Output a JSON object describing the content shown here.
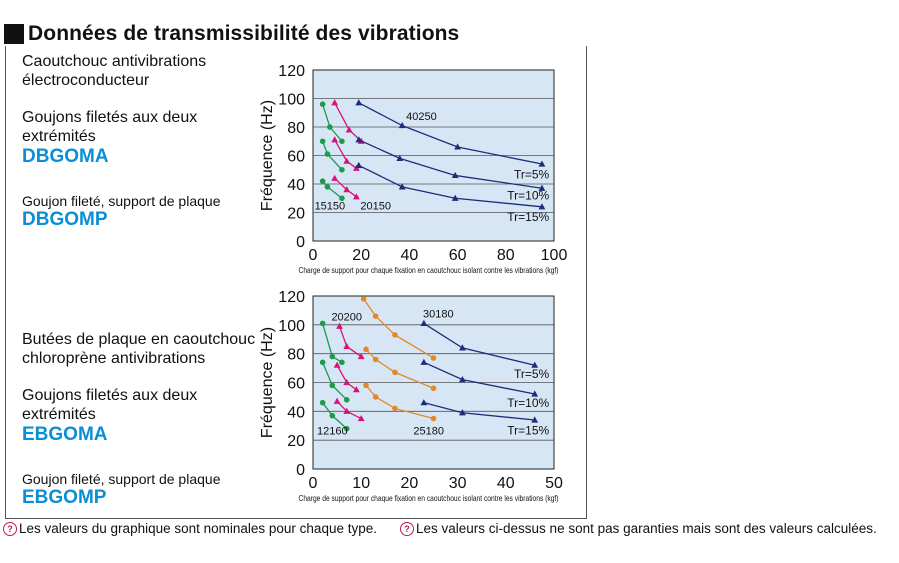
{
  "header": {
    "title": "Données de transmissibilité des vibrations"
  },
  "colors": {
    "accent": "#0a8fd6",
    "plot_bg": "#d7e6f5",
    "navy": "#1f2c7a",
    "magenta": "#d6137a",
    "green": "#1c9b4b",
    "orange": "#e3882a"
  },
  "left_panel": {
    "top_rubber": "Caoutchouc antivibrations",
    "top_rubber2": "électroconducteur",
    "top_both": "Goujons filetés aux deux",
    "top_both2": "extrémités",
    "top_code1": "DBGOMA",
    "top_plate": "Goujon fileté, support de plaque",
    "top_code2": "DBGOMP",
    "bot_rubber": "Butées de plaque en caoutchouc",
    "bot_rubber2": "chloroprène antivibrations",
    "bot_both": "Goujons filetés aux deux",
    "bot_both2": "extrémités",
    "bot_code1": "EBGOMA",
    "bot_plate": "Goujon fileté, support de plaque",
    "bot_code2": "EBGOMP"
  },
  "footer": {
    "note1": "Les valeurs du graphique sont nominales pour chaque type.",
    "note2": "Les valeurs ci-dessus ne sont pas garanties mais sont des valeurs calculées.",
    "icon": "info-circle-icon"
  },
  "chart_data": [
    {
      "type": "line",
      "ylabel": "Fréquence (Hz)",
      "xlabel": "Charge de support pour chaque fixation en caoutchouc isolant contre les vibrations (kgf)",
      "xlim": [
        0,
        100
      ],
      "ylim": [
        0,
        120
      ],
      "xticks": [
        0,
        20,
        40,
        60,
        80,
        100
      ],
      "yticks": [
        0,
        20,
        40,
        60,
        80,
        100,
        120
      ],
      "grid": "horizontal",
      "series": [
        {
          "name": "15150",
          "color": "#1c9b4b",
          "marker": "circle",
          "x": [
            4,
            7,
            12
          ],
          "y": [
            96,
            80,
            70
          ]
        },
        {
          "name": "",
          "color": "#1c9b4b",
          "marker": "circle",
          "x": [
            4,
            6,
            12
          ],
          "y": [
            70,
            61,
            50
          ]
        },
        {
          "name": "",
          "color": "#1c9b4b",
          "marker": "circle",
          "x": [
            4,
            6,
            12
          ],
          "y": [
            42,
            38,
            30
          ]
        },
        {
          "name": "20150",
          "color": "#d6137a",
          "marker": "triangle",
          "x": [
            9,
            15,
            20
          ],
          "y": [
            97,
            78,
            70
          ]
        },
        {
          "name": "",
          "color": "#d6137a",
          "marker": "triangle",
          "x": [
            9,
            14,
            18
          ],
          "y": [
            71,
            56,
            51
          ]
        },
        {
          "name": "",
          "color": "#d6137a",
          "marker": "triangle",
          "x": [
            9,
            14,
            18
          ],
          "y": [
            44,
            36,
            31
          ]
        },
        {
          "name": "40250",
          "color": "#1f2c7a",
          "marker": "triangle",
          "x": [
            19,
            37,
            60,
            95
          ],
          "y": [
            97,
            81,
            66,
            54
          ]
        },
        {
          "name": "",
          "color": "#1f2c7a",
          "marker": "triangle",
          "x": [
            19,
            36,
            59,
            95
          ],
          "y": [
            71,
            58,
            46,
            37
          ]
        },
        {
          "name": "",
          "color": "#1f2c7a",
          "marker": "triangle",
          "x": [
            19,
            37,
            59,
            95
          ],
          "y": [
            53,
            38,
            30,
            24
          ]
        }
      ],
      "labels": [
        {
          "text": "40250",
          "x": 45,
          "y": 85
        },
        {
          "text": "15150",
          "x": 7,
          "y": 22
        },
        {
          "text": "20150",
          "x": 26,
          "y": 22
        },
        {
          "text": "Tr=5%",
          "x": 98,
          "y": 44
        },
        {
          "text": "Tr=10%",
          "x": 98,
          "y": 29
        },
        {
          "text": "Tr=15%",
          "x": 98,
          "y": 14
        }
      ]
    },
    {
      "type": "line",
      "ylabel": "Fréquence (Hz)",
      "xlabel": "Charge de support pour chaque fixation en caoutchouc isolant contre les vibrations (kgf)",
      "xlim": [
        0,
        50
      ],
      "ylim": [
        0,
        120
      ],
      "xticks": [
        0,
        10,
        20,
        30,
        40,
        50
      ],
      "yticks": [
        0,
        20,
        40,
        60,
        80,
        100,
        120
      ],
      "grid": "horizontal",
      "series": [
        {
          "name": "12160",
          "color": "#1c9b4b",
          "marker": "circle",
          "x": [
            2,
            4,
            6
          ],
          "y": [
            101,
            78,
            74
          ]
        },
        {
          "name": "",
          "color": "#1c9b4b",
          "marker": "circle",
          "x": [
            2,
            4,
            7
          ],
          "y": [
            74,
            58,
            48
          ]
        },
        {
          "name": "",
          "color": "#1c9b4b",
          "marker": "circle",
          "x": [
            2,
            4,
            7
          ],
          "y": [
            46,
            37,
            28
          ]
        },
        {
          "name": "20200",
          "color": "#d6137a",
          "marker": "triangle",
          "x": [
            5.5,
            7,
            10
          ],
          "y": [
            99,
            85,
            78
          ]
        },
        {
          "name": "",
          "color": "#d6137a",
          "marker": "triangle",
          "x": [
            5,
            7,
            9
          ],
          "y": [
            72,
            60,
            55
          ]
        },
        {
          "name": "",
          "color": "#d6137a",
          "marker": "triangle",
          "x": [
            5,
            7,
            10
          ],
          "y": [
            47,
            40,
            35
          ]
        },
        {
          "name": "25180",
          "color": "#e3882a",
          "marker": "circle",
          "x": [
            10.5,
            13,
            17,
            25
          ],
          "y": [
            118,
            106,
            93,
            77
          ]
        },
        {
          "name": "",
          "color": "#e3882a",
          "marker": "circle",
          "x": [
            11,
            13,
            17,
            25
          ],
          "y": [
            83,
            76,
            67,
            56
          ]
        },
        {
          "name": "",
          "color": "#e3882a",
          "marker": "circle",
          "x": [
            11,
            13,
            17,
            25
          ],
          "y": [
            58,
            50,
            42,
            35
          ]
        },
        {
          "name": "30180",
          "color": "#1f2c7a",
          "marker": "triangle",
          "x": [
            23,
            31,
            46
          ],
          "y": [
            101,
            84,
            72
          ]
        },
        {
          "name": "",
          "color": "#1f2c7a",
          "marker": "triangle",
          "x": [
            23,
            31,
            46
          ],
          "y": [
            74,
            62,
            52
          ]
        },
        {
          "name": "",
          "color": "#1f2c7a",
          "marker": "triangle",
          "x": [
            23,
            31,
            46
          ],
          "y": [
            46,
            39,
            34
          ]
        }
      ],
      "labels": [
        {
          "text": "30180",
          "x": 26,
          "y": 105
        },
        {
          "text": "20200",
          "x": 7,
          "y": 103
        },
        {
          "text": "12160",
          "x": 4,
          "y": 24
        },
        {
          "text": "25180",
          "x": 24,
          "y": 24
        },
        {
          "text": "Tr=5%",
          "x": 49,
          "y": 63
        },
        {
          "text": "Tr=10%",
          "x": 49,
          "y": 43
        },
        {
          "text": "Tr=15%",
          "x": 49,
          "y": 24
        }
      ]
    }
  ]
}
